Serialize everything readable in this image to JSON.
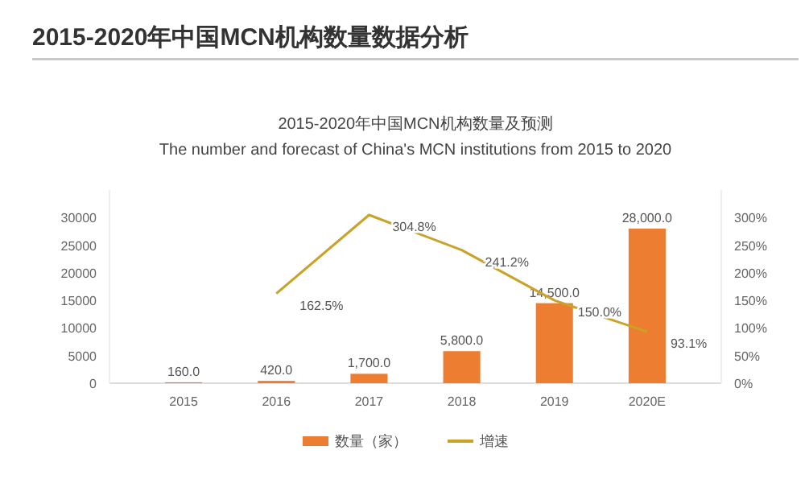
{
  "chart_data": {
    "type": "bar",
    "title": "2015-2020年中国MCN机构数量及预测",
    "subtitle": "The number and forecast of China's MCN institutions from 2015 to 2020",
    "annotations": [
      "2015-2020年中国MCN机构数量数据分析"
    ],
    "categories": [
      "2015",
      "2016",
      "2017",
      "2018",
      "2019",
      "2020E"
    ],
    "series": [
      {
        "name": "数量（家）",
        "color": "#ed7d31",
        "values": [
          160,
          420,
          1700,
          5800,
          14500,
          28000
        ],
        "value_labels": [
          "160.0",
          "420.0",
          "1,700.0",
          "5,800.0",
          "14,500.0",
          "28,000.0"
        ]
      },
      {
        "name": "增速",
        "type": "line",
        "axis": "y2",
        "color": "#c9a227",
        "values": [
          null,
          162.5,
          304.8,
          241.2,
          150.0,
          93.1
        ],
        "value_labels": [
          null,
          "162.5%",
          "304.8%",
          "241.2%",
          "150.0%",
          "93.1%"
        ]
      }
    ],
    "ylim": [
      0,
      35000
    ],
    "yticks": [
      0,
      5000,
      10000,
      15000,
      20000,
      25000,
      30000
    ],
    "y2lim": [
      0,
      350
    ],
    "y2ticks": [
      {
        "value": 0,
        "label": "0%"
      },
      {
        "value": 50,
        "label": "50%"
      },
      {
        "value": 100,
        "label": "100%"
      },
      {
        "value": 150,
        "label": "150%"
      },
      {
        "value": 200,
        "label": "200%"
      },
      {
        "value": 250,
        "label": "250%"
      },
      {
        "value": 300,
        "label": "300%"
      }
    ],
    "legend": "bottom"
  }
}
